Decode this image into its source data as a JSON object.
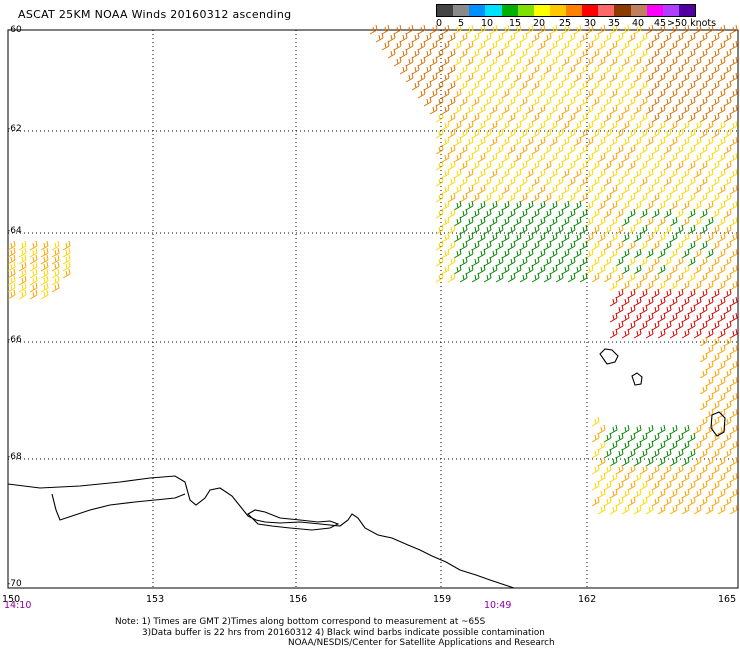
{
  "title": "ASCAT 25KM NOAA Winds 20160312 ascending",
  "legend": {
    "colors": [
      "#444444",
      "#8a8a8a",
      "#0090ff",
      "#00e0ff",
      "#00b000",
      "#80e000",
      "#ffff00",
      "#ffc800",
      "#ff8000",
      "#ff0000",
      "#ff6868",
      "#8b3a00",
      "#c08060",
      "#ff00ff",
      "#b040ff",
      "#5000a0"
    ],
    "labels": [
      "0",
      "5",
      "10",
      "15",
      "20",
      "25",
      "30",
      "35",
      "40",
      "45",
      ">50 knots"
    ]
  },
  "lat_labels": [
    "-60",
    "-62",
    "-64",
    "-66",
    "-68",
    "-70"
  ],
  "lon_labels": [
    "150",
    "153",
    "156",
    "159",
    "162",
    "165"
  ],
  "time_labels": [
    "14:10",
    "10:49"
  ],
  "notes": [
    "Note: 1) Times are GMT 2)Times along bottom correspond to measurement at ~65S",
    "3)Data buffer is 22 hrs from 20160312 4) Black wind barbs indicate possible contamination",
    "NOAA/NESDIS/Center for Satellite Applications and Research"
  ],
  "barb_colors": {
    "green": "#008800",
    "yellow": "#ffd700",
    "orange": "#ffa200",
    "dark_orange": "#e07000",
    "red": "#dd0000"
  }
}
